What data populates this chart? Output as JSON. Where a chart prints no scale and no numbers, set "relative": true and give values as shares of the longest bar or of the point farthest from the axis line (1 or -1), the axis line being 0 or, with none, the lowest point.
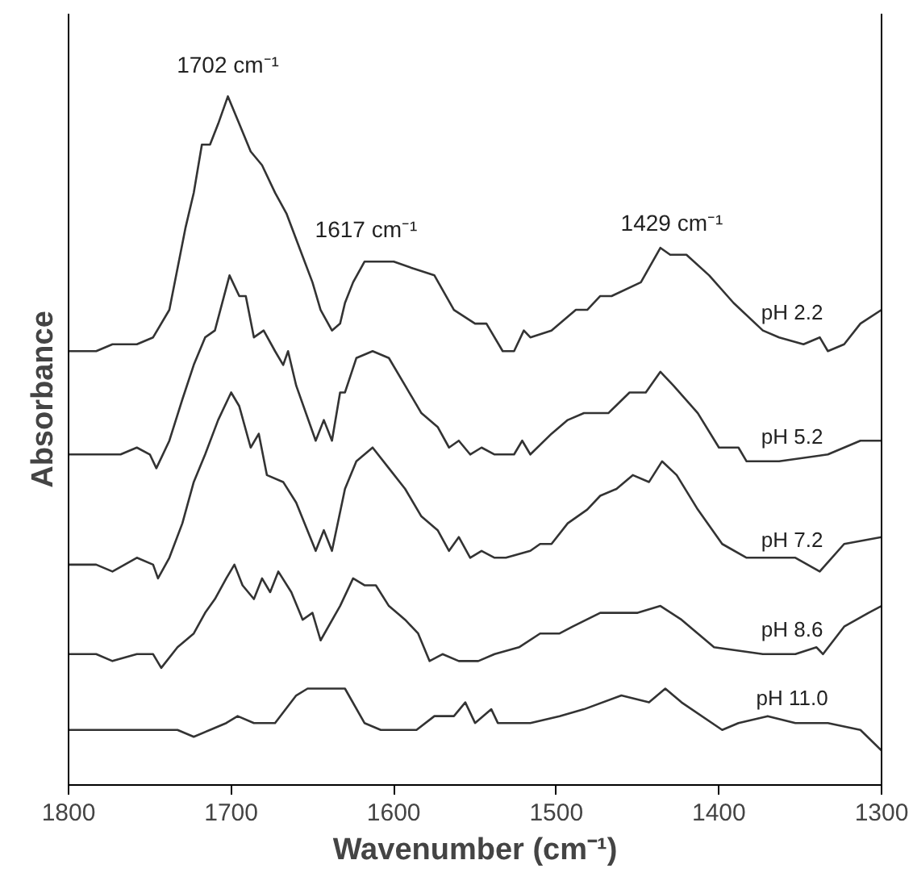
{
  "chart_data": {
    "type": "line",
    "relative": true,
    "xlabel": "Wavenumber (cm⁻¹)",
    "ylabel": "Absorbance",
    "xlim": [
      1800,
      1300
    ],
    "xticks": [
      1800,
      1700,
      1600,
      1500,
      1400,
      1300
    ],
    "grid": false,
    "marker": "none",
    "line_style": "solid",
    "series": [
      {
        "name": "pH 2.2",
        "color": "#333333",
        "x": [
          1800,
          1783,
          1773,
          1758,
          1748,
          1738,
          1728,
          1723,
          1718,
          1713,
          1708,
          1702,
          1695,
          1688,
          1681,
          1673,
          1666,
          1658,
          1650,
          1645,
          1638,
          1633,
          1630,
          1625,
          1618,
          1613,
          1606,
          1600,
          1588,
          1575,
          1563,
          1550,
          1543,
          1533,
          1526,
          1520,
          1516,
          1503,
          1488,
          1481,
          1473,
          1466,
          1448,
          1436,
          1430,
          1420,
          1406,
          1391,
          1373,
          1363,
          1348,
          1338,
          1333,
          1323,
          1313,
          1300
        ],
        "values": [
          0.63,
          0.63,
          0.64,
          0.64,
          0.65,
          0.69,
          0.81,
          0.86,
          0.93,
          0.93,
          0.96,
          1.0,
          0.96,
          0.92,
          0.9,
          0.86,
          0.83,
          0.78,
          0.73,
          0.69,
          0.66,
          0.67,
          0.7,
          0.73,
          0.76,
          0.76,
          0.76,
          0.76,
          0.75,
          0.74,
          0.69,
          0.67,
          0.67,
          0.63,
          0.63,
          0.66,
          0.65,
          0.66,
          0.69,
          0.69,
          0.71,
          0.71,
          0.73,
          0.78,
          0.77,
          0.77,
          0.74,
          0.7,
          0.66,
          0.65,
          0.64,
          0.65,
          0.63,
          0.64,
          0.67,
          0.69
        ]
      },
      {
        "name": "pH 5.2",
        "color": "#333333",
        "x": [
          1800,
          1783,
          1768,
          1758,
          1750,
          1746,
          1738,
          1730,
          1723,
          1716,
          1710,
          1701,
          1695,
          1691,
          1686,
          1680,
          1673,
          1668,
          1665,
          1660,
          1648,
          1643,
          1638,
          1633,
          1630,
          1623,
          1613,
          1603,
          1593,
          1583,
          1573,
          1566,
          1560,
          1553,
          1546,
          1538,
          1533,
          1526,
          1521,
          1516,
          1503,
          1493,
          1483,
          1468,
          1455,
          1445,
          1436,
          1428,
          1413,
          1400,
          1388,
          1383,
          1363,
          1333,
          1313,
          1300
        ],
        "values": [
          0.48,
          0.48,
          0.48,
          0.49,
          0.48,
          0.46,
          0.5,
          0.56,
          0.61,
          0.65,
          0.66,
          0.74,
          0.71,
          0.71,
          0.65,
          0.66,
          0.63,
          0.61,
          0.63,
          0.58,
          0.5,
          0.53,
          0.5,
          0.57,
          0.57,
          0.62,
          0.63,
          0.62,
          0.58,
          0.54,
          0.52,
          0.49,
          0.5,
          0.48,
          0.49,
          0.48,
          0.48,
          0.48,
          0.5,
          0.48,
          0.51,
          0.53,
          0.54,
          0.54,
          0.57,
          0.57,
          0.6,
          0.58,
          0.54,
          0.49,
          0.49,
          0.47,
          0.47,
          0.48,
          0.5,
          0.5
        ]
      },
      {
        "name": "pH 7.2",
        "color": "#333333",
        "x": [
          1800,
          1783,
          1773,
          1758,
          1748,
          1745,
          1738,
          1730,
          1723,
          1716,
          1708,
          1700,
          1695,
          1688,
          1683,
          1678,
          1668,
          1660,
          1648,
          1643,
          1638,
          1630,
          1623,
          1613,
          1603,
          1593,
          1583,
          1573,
          1566,
          1560,
          1553,
          1546,
          1538,
          1531,
          1516,
          1510,
          1503,
          1493,
          1481,
          1473,
          1463,
          1453,
          1443,
          1435,
          1426,
          1413,
          1398,
          1383,
          1368,
          1353,
          1338,
          1323,
          1300
        ],
        "values": [
          0.32,
          0.32,
          0.31,
          0.33,
          0.32,
          0.3,
          0.33,
          0.38,
          0.44,
          0.48,
          0.53,
          0.57,
          0.55,
          0.49,
          0.51,
          0.45,
          0.44,
          0.41,
          0.34,
          0.37,
          0.34,
          0.43,
          0.47,
          0.49,
          0.46,
          0.43,
          0.39,
          0.37,
          0.34,
          0.36,
          0.33,
          0.34,
          0.33,
          0.33,
          0.34,
          0.35,
          0.35,
          0.38,
          0.4,
          0.42,
          0.43,
          0.45,
          0.44,
          0.47,
          0.45,
          0.4,
          0.35,
          0.33,
          0.33,
          0.33,
          0.31,
          0.35,
          0.36
        ]
      },
      {
        "name": "pH 8.6",
        "color": "#333333",
        "x": [
          1800,
          1783,
          1773,
          1758,
          1748,
          1743,
          1733,
          1723,
          1716,
          1710,
          1703,
          1698,
          1693,
          1686,
          1681,
          1676,
          1671,
          1663,
          1656,
          1650,
          1645,
          1633,
          1625,
          1618,
          1611,
          1603,
          1593,
          1585,
          1578,
          1570,
          1560,
          1548,
          1538,
          1523,
          1510,
          1498,
          1490,
          1473,
          1463,
          1450,
          1436,
          1423,
          1403,
          1373,
          1353,
          1340,
          1336,
          1323,
          1308,
          1300
        ],
        "values": [
          0.19,
          0.19,
          0.18,
          0.19,
          0.19,
          0.17,
          0.2,
          0.22,
          0.25,
          0.27,
          0.3,
          0.32,
          0.29,
          0.27,
          0.3,
          0.28,
          0.31,
          0.28,
          0.24,
          0.25,
          0.21,
          0.26,
          0.3,
          0.29,
          0.29,
          0.26,
          0.24,
          0.22,
          0.18,
          0.19,
          0.18,
          0.18,
          0.19,
          0.2,
          0.22,
          0.22,
          0.23,
          0.25,
          0.25,
          0.25,
          0.26,
          0.24,
          0.2,
          0.19,
          0.19,
          0.2,
          0.19,
          0.23,
          0.25,
          0.26
        ]
      },
      {
        "name": "pH 11.0",
        "color": "#333333",
        "x": [
          1800,
          1783,
          1758,
          1733,
          1723,
          1713,
          1703,
          1696,
          1686,
          1680,
          1673,
          1660,
          1653,
          1641,
          1630,
          1618,
          1608,
          1586,
          1575,
          1563,
          1556,
          1550,
          1540,
          1536,
          1523,
          1516,
          1498,
          1483,
          1460,
          1443,
          1433,
          1423,
          1398,
          1388,
          1370,
          1353,
          1333,
          1313,
          1300
        ],
        "values": [
          0.08,
          0.08,
          0.08,
          0.08,
          0.07,
          0.08,
          0.09,
          0.1,
          0.09,
          0.09,
          0.09,
          0.13,
          0.14,
          0.14,
          0.14,
          0.09,
          0.08,
          0.08,
          0.1,
          0.1,
          0.12,
          0.09,
          0.11,
          0.09,
          0.09,
          0.09,
          0.1,
          0.11,
          0.13,
          0.12,
          0.14,
          0.12,
          0.08,
          0.09,
          0.1,
          0.09,
          0.09,
          0.08,
          0.05
        ]
      }
    ],
    "annotations": [
      {
        "text": "1702 cm⁻¹",
        "x": 1702,
        "y": 1.0
      },
      {
        "text": "1617 cm⁻¹",
        "x": 1617,
        "y": 0.76
      },
      {
        "text": "1429 cm⁻¹",
        "x": 1429,
        "y": 0.77
      }
    ]
  }
}
